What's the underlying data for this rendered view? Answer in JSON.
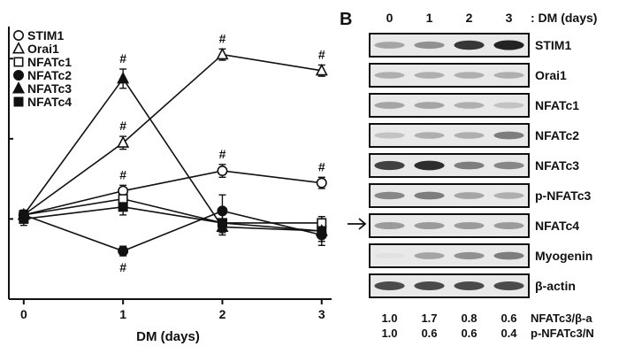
{
  "chart_data": [
    {
      "type": "line",
      "xlabel": "DM (days)",
      "x": [
        0,
        1,
        2,
        3
      ],
      "x_tick_labels": [
        "0",
        "1",
        "2",
        "3"
      ],
      "xlim": [
        -0.15,
        3.1
      ],
      "ylim": [
        0.0,
        3.4
      ],
      "grid": false,
      "legend_position": "top-left",
      "series": [
        {
          "name": "STIM1",
          "marker": "circle-open",
          "values": [
            1.05,
            1.35,
            1.6,
            1.45
          ],
          "err": [
            0.05,
            0.07,
            0.08,
            0.07
          ],
          "significant": [
            false,
            true,
            true,
            true
          ]
        },
        {
          "name": "Orai1",
          "marker": "triangle-open",
          "values": [
            1.05,
            1.95,
            3.05,
            2.85
          ],
          "err": [
            0.05,
            0.08,
            0.07,
            0.07
          ],
          "significant": [
            false,
            true,
            true,
            true
          ]
        },
        {
          "name": "NFATc1",
          "marker": "square-open",
          "values": [
            1.05,
            1.25,
            0.95,
            0.95
          ],
          "err": [
            0.05,
            0.06,
            0.05,
            0.05
          ],
          "significant": [
            false,
            false,
            false,
            false
          ]
        },
        {
          "name": "NFATc2",
          "marker": "circle-filled",
          "values": [
            1.05,
            0.6,
            1.1,
            0.8
          ],
          "err": [
            0.06,
            0.06,
            0.2,
            0.08
          ],
          "significant": [
            false,
            true,
            false,
            false
          ]
        },
        {
          "name": "NFATc3",
          "marker": "triangle-filled",
          "values": [
            1.05,
            2.75,
            0.9,
            0.85
          ],
          "err": [
            0.06,
            0.12,
            0.1,
            0.07
          ],
          "significant": [
            false,
            true,
            false,
            false
          ]
        },
        {
          "name": "NFATc4",
          "marker": "square-filled",
          "values": [
            1.0,
            1.15,
            0.95,
            0.85
          ],
          "err": [
            0.08,
            0.1,
            0.12,
            0.18
          ],
          "significant": [
            false,
            false,
            false,
            false
          ]
        }
      ],
      "significance_symbol": "#"
    },
    {
      "type": "table",
      "panel": "B",
      "header_unit": ": DM (days)",
      "lanes": [
        "0",
        "1",
        "2",
        "3"
      ],
      "blots": [
        {
          "name": "STIM1",
          "intensity": [
            0.35,
            0.45,
            0.9,
            1.0
          ]
        },
        {
          "name": "Orai1",
          "intensity": [
            0.3,
            0.3,
            0.3,
            0.3
          ]
        },
        {
          "name": "NFATc1",
          "intensity": [
            0.35,
            0.35,
            0.3,
            0.2
          ]
        },
        {
          "name": "NFATc2",
          "intensity": [
            0.2,
            0.3,
            0.3,
            0.55
          ]
        },
        {
          "name": "NFATc3",
          "intensity": [
            0.85,
            0.95,
            0.55,
            0.5
          ]
        },
        {
          "name": "p-NFATc3",
          "intensity": [
            0.5,
            0.55,
            0.35,
            0.3
          ]
        },
        {
          "name": "NFATc4",
          "intensity": [
            0.4,
            0.4,
            0.4,
            0.4
          ]
        },
        {
          "name": "Myogenin",
          "intensity": [
            0.05,
            0.35,
            0.45,
            0.55
          ]
        },
        {
          "name": "β-actin",
          "intensity": [
            0.8,
            0.8,
            0.8,
            0.8
          ]
        }
      ],
      "ratios": [
        {
          "values": [
            "1.0",
            "1.7",
            "0.8",
            "0.6"
          ],
          "label": "NFATc3/β-a"
        },
        {
          "values": [
            "1.0",
            "0.6",
            "0.6",
            "0.4"
          ],
          "label": "p-NFATc3/N"
        }
      ],
      "arrow_marker_row": "NFATc4"
    }
  ],
  "panels": {
    "b_letter": "B"
  }
}
